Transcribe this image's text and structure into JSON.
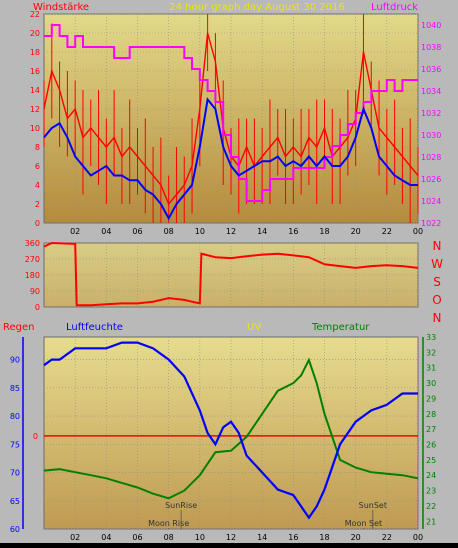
{
  "header": {
    "left_label": "Windstärke",
    "title": "24 hour graph day   August 30 2016",
    "right_label": "Luftdruck"
  },
  "colors": {
    "wind": "#ff0000",
    "pressure": "#ff00ff",
    "avg_wind": "#0000ff",
    "humidity": "#0000ff",
    "temperature": "#008000",
    "rain": "#ff0000",
    "uv": "#e6e600"
  },
  "chart_data": [
    {
      "type": "line",
      "name": "wind-pressure",
      "x_ticks": [
        "02",
        "04",
        "06",
        "08",
        "10",
        "12",
        "14",
        "16",
        "18",
        "20",
        "22",
        "00"
      ],
      "y_left_ticks": [
        "0",
        "2",
        "4",
        "6",
        "8",
        "10",
        "12",
        "14",
        "16",
        "18",
        "20",
        "22"
      ],
      "y_right_ticks": [
        "1022",
        "1024",
        "1026",
        "1028",
        "1030",
        "1032",
        "1034",
        "1036",
        "1038",
        "1040"
      ],
      "ylim_left": [
        0,
        22
      ],
      "ylim_right": [
        1022,
        1041
      ],
      "xlim": [
        0,
        24
      ],
      "ylabel_left": "Windstärke",
      "ylabel_right": "Luftdruck",
      "series": [
        {
          "name": "Windstärke",
          "axis": "left",
          "x": [
            0.0,
            0.5,
            1.0,
            1.5,
            2.0,
            2.5,
            3.0,
            3.5,
            4.0,
            4.5,
            5.0,
            5.5,
            6.0,
            6.5,
            7.0,
            7.5,
            8.0,
            8.5,
            9.0,
            9.5,
            10.0,
            10.5,
            11.0,
            11.5,
            12.0,
            12.5,
            13.0,
            13.5,
            14.0,
            14.5,
            15.0,
            15.5,
            16.0,
            16.5,
            17.0,
            17.5,
            18.0,
            18.5,
            19.0,
            19.5,
            20.0,
            20.5,
            21.0,
            21.5,
            22.0,
            22.5,
            23.0,
            23.5,
            24.0
          ],
          "y": [
            12,
            16,
            14,
            11,
            12,
            9,
            10,
            9,
            8,
            9,
            7,
            8,
            7,
            6,
            5,
            4,
            2,
            3,
            4,
            6,
            12,
            20,
            17,
            10,
            7,
            6,
            8,
            6,
            7,
            8,
            9,
            7,
            8,
            7,
            9,
            8,
            10,
            7,
            8,
            9,
            11,
            18,
            14,
            10,
            9,
            8,
            7,
            6,
            5
          ]
        },
        {
          "name": "Durchschnittswind",
          "axis": "left",
          "x": [
            0.0,
            0.5,
            1.0,
            1.5,
            2.0,
            2.5,
            3.0,
            3.5,
            4.0,
            4.5,
            5.0,
            5.5,
            6.0,
            6.5,
            7.0,
            7.5,
            8.0,
            8.5,
            9.0,
            9.5,
            10.0,
            10.5,
            11.0,
            11.5,
            12.0,
            12.5,
            13.0,
            13.5,
            14.0,
            14.5,
            15.0,
            15.5,
            16.0,
            16.5,
            17.0,
            17.5,
            18.0,
            18.5,
            19.0,
            19.5,
            20.0,
            20.5,
            21.0,
            21.5,
            22.0,
            22.5,
            23.0,
            23.5,
            24.0
          ],
          "y": [
            9,
            10,
            10.5,
            9,
            7,
            6,
            5,
            5.5,
            6,
            5,
            5,
            4.5,
            4.5,
            3.5,
            3,
            2,
            0.5,
            2,
            3,
            4,
            8,
            13,
            12,
            8,
            6,
            5,
            5.5,
            6,
            6.5,
            6.5,
            7,
            6,
            6.5,
            6,
            7,
            6,
            7,
            6,
            6,
            7,
            9,
            12,
            10,
            7,
            6,
            5,
            4.5,
            4,
            4
          ]
        },
        {
          "name": "Luftdruck",
          "axis": "right",
          "x": [
            0.0,
            0.5,
            1.0,
            1.5,
            2.0,
            2.5,
            3.0,
            3.5,
            4.0,
            4.5,
            5.0,
            5.5,
            6.0,
            6.5,
            7.0,
            7.5,
            8.0,
            8.5,
            9.0,
            9.5,
            10.0,
            10.5,
            11.0,
            11.5,
            12.0,
            12.5,
            13.0,
            13.5,
            14.0,
            14.5,
            15.0,
            15.5,
            16.0,
            16.5,
            17.0,
            17.5,
            18.0,
            18.5,
            19.0,
            19.5,
            20.0,
            20.5,
            21.0,
            21.5,
            22.0,
            22.5,
            23.0,
            23.5,
            24.0
          ],
          "y": [
            1039,
            1040,
            1039,
            1038,
            1039,
            1038,
            1038,
            1038,
            1038,
            1037,
            1037,
            1038,
            1038,
            1038,
            1038,
            1038,
            1038,
            1038,
            1037,
            1036,
            1035,
            1034,
            1033,
            1030,
            1028,
            1026,
            1024,
            1024,
            1025,
            1026,
            1026,
            1026,
            1027,
            1027,
            1027,
            1027,
            1028,
            1029,
            1030,
            1031,
            1032,
            1033,
            1034,
            1034,
            1035,
            1034,
            1035,
            1035,
            1035
          ]
        }
      ]
    },
    {
      "type": "line",
      "name": "wind-direction",
      "x_ticks": [
        "02",
        "04",
        "06",
        "08",
        "10",
        "12",
        "14",
        "16",
        "18",
        "20",
        "22",
        "00"
      ],
      "y_ticks": [
        "0",
        "90",
        "180",
        "270",
        "360"
      ],
      "direction_labels": [
        "N",
        "W",
        "S",
        "O",
        "N"
      ],
      "ylim": [
        0,
        360
      ],
      "xlim": [
        0,
        24
      ],
      "series": [
        {
          "name": "Windrichtung",
          "x": [
            0.0,
            0.5,
            2.0,
            2.1,
            3.0,
            4.0,
            5.0,
            6.0,
            7.0,
            8.0,
            9.0,
            9.5,
            10.0,
            10.1,
            11.0,
            12.0,
            13.0,
            14.0,
            15.0,
            16.0,
            17.0,
            18.0,
            19.0,
            20.0,
            21.0,
            22.0,
            23.0,
            24.0
          ],
          "y": [
            340,
            360,
            355,
            10,
            10,
            15,
            20,
            20,
            30,
            50,
            40,
            30,
            20,
            300,
            280,
            275,
            285,
            295,
            300,
            290,
            280,
            240,
            230,
            220,
            230,
            235,
            230,
            220
          ]
        }
      ]
    },
    {
      "type": "line",
      "name": "humidity-temperature",
      "labels": {
        "rain": "Regen",
        "humidity": "Luftfeuchte",
        "uv": "UV",
        "temperature": "Temperatur"
      },
      "x_ticks": [
        "02",
        "04",
        "06",
        "08",
        "10",
        "12",
        "14",
        "16",
        "18",
        "20",
        "22",
        "00"
      ],
      "y_left_ticks": [
        "60",
        "65",
        "70",
        "75",
        "80",
        "85",
        "90"
      ],
      "y_right_ticks": [
        "21",
        "22",
        "23",
        "24",
        "25",
        "26",
        "27",
        "28",
        "29",
        "30",
        "31",
        "32",
        "33"
      ],
      "rain_tick": "0",
      "ylim_left": [
        60,
        94
      ],
      "ylim_right": [
        20.5,
        33
      ],
      "xlim": [
        0,
        24
      ],
      "annotations": [
        "SunRise",
        "Moon Rise",
        "SunSet",
        "Moon Set"
      ],
      "series": [
        {
          "name": "Luftfeuchte",
          "axis": "left",
          "x": [
            0.0,
            0.5,
            1.0,
            2.0,
            3.0,
            4.0,
            5.0,
            6.0,
            7.0,
            8.0,
            9.0,
            10.0,
            10.5,
            11.0,
            11.5,
            12.0,
            12.5,
            13.0,
            14.0,
            15.0,
            16.0,
            16.5,
            17.0,
            17.5,
            18.0,
            18.5,
            19.0,
            20.0,
            21.0,
            22.0,
            23.0,
            24.0
          ],
          "y": [
            89,
            90,
            90,
            92,
            92,
            92,
            93,
            93,
            92,
            90,
            87,
            81,
            77,
            75,
            78,
            79,
            77,
            73,
            70,
            67,
            66,
            64,
            62,
            64,
            67,
            71,
            75,
            79,
            81,
            82,
            84,
            84
          ]
        },
        {
          "name": "Temperatur",
          "axis": "right",
          "x": [
            0.0,
            1.0,
            2.0,
            3.0,
            4.0,
            5.0,
            6.0,
            7.0,
            8.0,
            9.0,
            10.0,
            11.0,
            12.0,
            13.0,
            14.0,
            15.0,
            16.0,
            16.5,
            17.0,
            17.5,
            18.0,
            18.5,
            19.0,
            20.0,
            21.0,
            22.0,
            23.0,
            24.0
          ],
          "y": [
            24.3,
            24.4,
            24.2,
            24.0,
            23.8,
            23.5,
            23.2,
            22.8,
            22.5,
            23.0,
            24.0,
            25.5,
            25.6,
            26.5,
            28.0,
            29.5,
            30.0,
            30.5,
            31.5,
            30.0,
            28.0,
            26.5,
            25.0,
            24.5,
            24.2,
            24.1,
            24.0,
            23.8
          ]
        },
        {
          "name": "Regen",
          "axis": "rain",
          "x": [
            0.0,
            24.0
          ],
          "y": [
            0,
            0
          ]
        }
      ]
    }
  ]
}
